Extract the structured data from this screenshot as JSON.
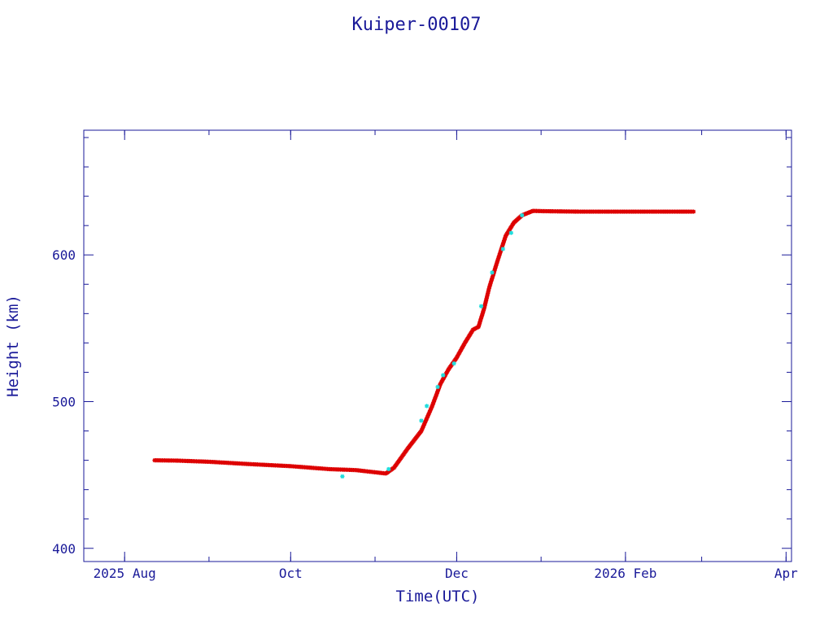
{
  "chart_data": {
    "type": "scatter",
    "title": "Kuiper-00107",
    "xlabel": "Time(UTC)",
    "ylabel": "Height (km)",
    "xlim": [
      "2025-07-17",
      "2026-04-03"
    ],
    "ylim": [
      391,
      685
    ],
    "x_ticks": [
      {
        "date": "2025-08-01",
        "label": "2025 Aug"
      },
      {
        "date": "2025-10-01",
        "label": "Oct"
      },
      {
        "date": "2025-12-01",
        "label": "Dec"
      },
      {
        "date": "2026-02-01",
        "label": "2026 Feb"
      },
      {
        "date": "2026-04-01",
        "label": "Apr"
      }
    ],
    "y_ticks": [
      400,
      500,
      600
    ],
    "colors": {
      "axis": "#1a1a99",
      "primary": "#dd0000",
      "secondary": "#22dddd"
    },
    "series": [
      {
        "color": "#dd0000",
        "x": [
          "2025-08-12",
          "2025-08-20",
          "2025-09-01",
          "2025-09-15",
          "2025-10-01",
          "2025-10-15",
          "2025-10-25",
          "2025-11-05",
          "2025-11-08",
          "2025-11-13",
          "2025-11-18",
          "2025-11-22",
          "2025-11-25",
          "2025-11-28",
          "2025-12-01",
          "2025-12-04",
          "2025-12-07",
          "2025-12-09",
          "2025-12-11",
          "2025-12-13",
          "2025-12-16",
          "2025-12-19",
          "2025-12-22",
          "2025-12-25",
          "2025-12-29",
          "2026-01-02",
          "2026-01-15",
          "2026-02-01",
          "2026-02-15",
          "2026-02-26"
        ],
        "y": [
          460,
          459.8,
          459,
          457.5,
          456,
          454,
          453.3,
          451,
          455,
          468,
          480,
          497,
          512,
          522,
          530,
          540,
          549,
          551,
          563,
          578,
          596,
          613,
          622,
          627,
          630,
          629.8,
          629.5,
          629.5,
          629.5,
          629.5
        ]
      },
      {
        "color": "#22dddd",
        "x": [
          "2025-10-20",
          "2025-11-06",
          "2025-11-18",
          "2025-11-20",
          "2025-11-24",
          "2025-11-26",
          "2025-11-30",
          "2025-12-10",
          "2025-12-14",
          "2025-12-18",
          "2025-12-21",
          "2025-12-25"
        ],
        "y": [
          449,
          454,
          487,
          497,
          510,
          518,
          526,
          565,
          588,
          604,
          615,
          627
        ]
      }
    ]
  }
}
